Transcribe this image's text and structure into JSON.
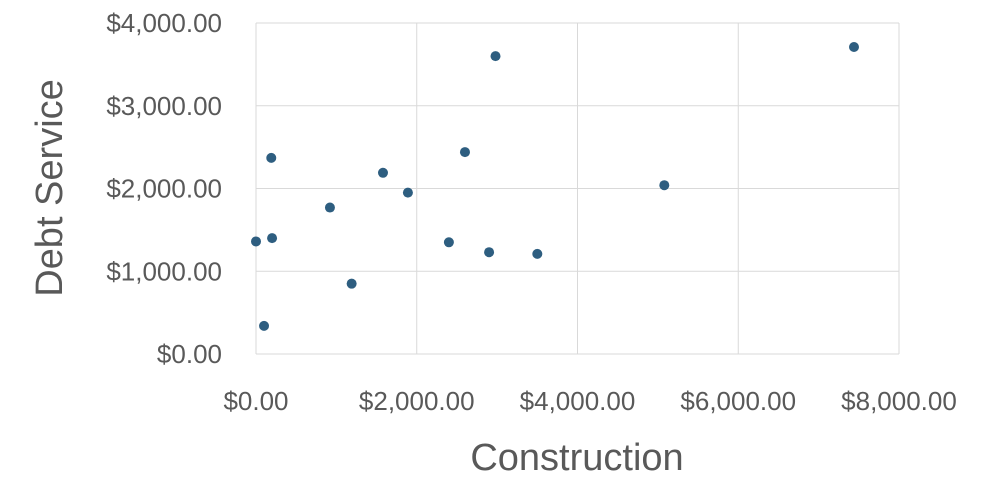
{
  "chart_data": {
    "type": "scatter",
    "title": "",
    "xlabel": "Construction",
    "ylabel": "Debt Service",
    "xlim": [
      0,
      8000
    ],
    "ylim": [
      0,
      4000
    ],
    "x_ticks": [
      0,
      2000,
      4000,
      6000,
      8000
    ],
    "y_ticks": [
      0,
      1000,
      2000,
      3000,
      4000
    ],
    "x_tick_labels": [
      "$0.00",
      "$2,000.00",
      "$4,000.00",
      "$6,000.00",
      "$8,000.00"
    ],
    "y_tick_labels": [
      "$0.00",
      "$1,000.00",
      "$2,000.00",
      "$3,000.00",
      "$4,000.00"
    ],
    "grid": true,
    "legend": "none",
    "marker_color": "#2e5e80",
    "series": [
      {
        "points": [
          {
            "x": 0,
            "y": 1360
          },
          {
            "x": 100,
            "y": 340
          },
          {
            "x": 190,
            "y": 2370
          },
          {
            "x": 200,
            "y": 1400
          },
          {
            "x": 920,
            "y": 1770
          },
          {
            "x": 1190,
            "y": 850
          },
          {
            "x": 1580,
            "y": 2190
          },
          {
            "x": 1890,
            "y": 1950
          },
          {
            "x": 2400,
            "y": 1350
          },
          {
            "x": 2600,
            "y": 2440
          },
          {
            "x": 2900,
            "y": 1230
          },
          {
            "x": 2980,
            "y": 3600
          },
          {
            "x": 3500,
            "y": 1210
          },
          {
            "x": 5080,
            "y": 2040
          },
          {
            "x": 7440,
            "y": 3710
          }
        ]
      }
    ]
  }
}
